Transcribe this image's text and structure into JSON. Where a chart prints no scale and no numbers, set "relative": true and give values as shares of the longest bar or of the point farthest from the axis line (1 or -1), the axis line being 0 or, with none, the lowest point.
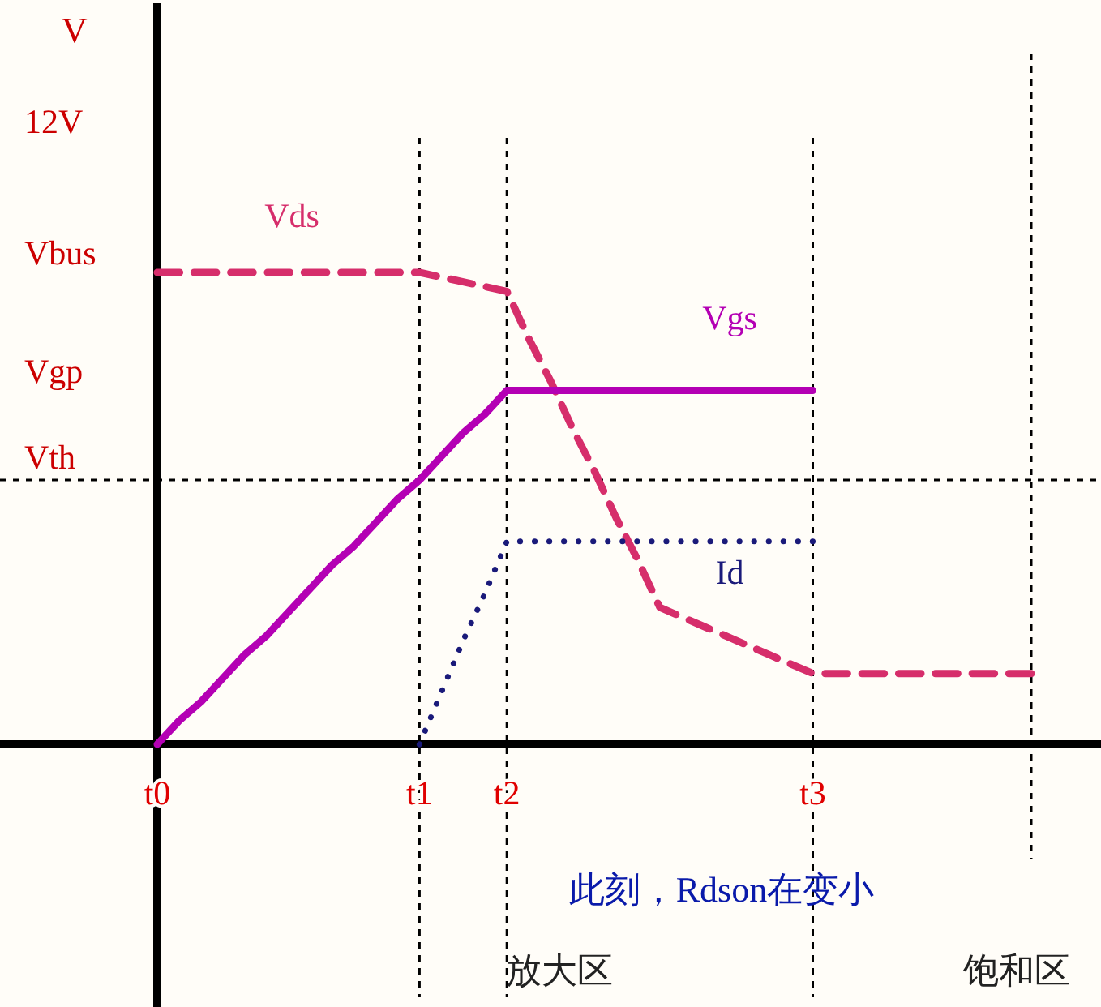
{
  "chart_data": {
    "type": "line",
    "relative": true,
    "categories": [
      "t0",
      null,
      null,
      null,
      null,
      null,
      null,
      null,
      null,
      null,
      null,
      null,
      "t1",
      null,
      null,
      null,
      "t2",
      null,
      null,
      null,
      null,
      null,
      null,
      null,
      null,
      null,
      null,
      null,
      null,
      null,
      "t3",
      null,
      null,
      null,
      null,
      null,
      null,
      null,
      null,
      null,
      null
    ],
    "series": [
      {
        "name": "Vds",
        "color": "#d62e6b",
        "line_style": "dashed",
        "values": [
          1,
          1,
          1,
          1,
          1,
          1,
          1,
          1,
          1,
          1,
          1,
          1,
          1,
          0.99,
          0.98,
          0.97,
          0.96,
          0.86,
          0.77,
          0.67,
          0.58,
          0.48,
          0.39,
          0.29,
          0.27,
          0.25,
          0.23,
          0.21,
          0.19,
          0.17,
          0.15,
          0.15,
          0.15,
          0.15,
          0.15,
          0.15,
          0.15,
          0.15,
          0.15,
          0.15,
          0.15
        ]
      },
      {
        "name": "Vgs",
        "color": "#b400b4",
        "line_style": "solid",
        "values": [
          0,
          0.05,
          0.09,
          0.14,
          0.19,
          0.23,
          0.28,
          0.33,
          0.38,
          0.42,
          0.47,
          0.52,
          0.56,
          0.61,
          0.66,
          0.7,
          0.75,
          0.75,
          0.75,
          0.75,
          0.75,
          0.75,
          0.75,
          0.75,
          0.75,
          0.75,
          0.75,
          0.75,
          0.75,
          0.75,
          0.75,
          null,
          null,
          null,
          null,
          null,
          null,
          null,
          null,
          null,
          null
        ]
      },
      {
        "name": "Id",
        "color": "#1a1a7a",
        "line_style": "dotted",
        "values": [
          null,
          null,
          null,
          null,
          null,
          null,
          null,
          null,
          null,
          null,
          null,
          null,
          0,
          0.11,
          0.22,
          0.32,
          0.43,
          0.43,
          0.43,
          0.43,
          0.43,
          0.43,
          0.43,
          0.43,
          0.43,
          0.43,
          0.43,
          0.43,
          0.43,
          0.43,
          0.43,
          null,
          null,
          null,
          null,
          null,
          null,
          null,
          null,
          null,
          null
        ]
      }
    ],
    "ref_lines": [
      {
        "axis": "y",
        "value": 0.56,
        "label": "Vth",
        "color": "#000000",
        "line_style": "dashed"
      }
    ],
    "grid": "x",
    "annotations": [
      "V",
      "12V",
      "Vbus",
      "Vgp",
      "此刻，Rdson在变小",
      "放大区",
      "饱和区"
    ],
    "marker": "none"
  }
}
